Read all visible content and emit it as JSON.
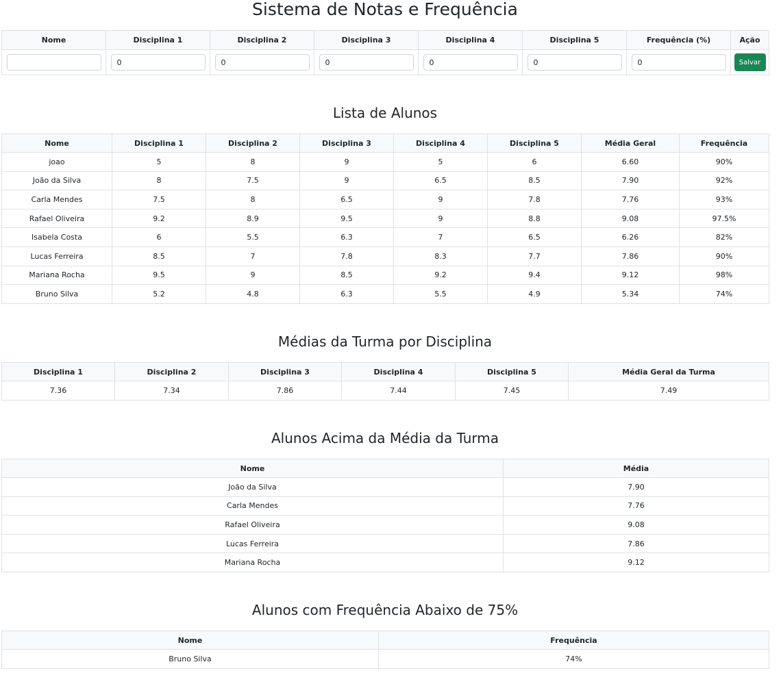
{
  "title": "Sistema de Notas e Frequência",
  "form": {
    "headers": [
      "Nome",
      "Disciplina 1",
      "Disciplina 2",
      "Disciplina 3",
      "Disciplina 4",
      "Disciplina 5",
      "Frequência (%)",
      "Ação"
    ],
    "name_value": "",
    "values": [
      "0",
      "0",
      "0",
      "0",
      "0",
      "0"
    ],
    "save_label": "Salvar"
  },
  "students": {
    "title": "Lista de Alunos",
    "headers": [
      "Nome",
      "Disciplina 1",
      "Disciplina 2",
      "Disciplina 3",
      "Disciplina 4",
      "Disciplina 5",
      "Média Geral",
      "Frequência"
    ],
    "rows": [
      [
        "joao",
        "5",
        "8",
        "9",
        "5",
        "6",
        "6.60",
        "90%"
      ],
      [
        "João da Silva",
        "8",
        "7.5",
        "9",
        "6.5",
        "8.5",
        "7.90",
        "92%"
      ],
      [
        "Carla Mendes",
        "7.5",
        "8",
        "6.5",
        "9",
        "7.8",
        "7.76",
        "93%"
      ],
      [
        "Rafael Oliveira",
        "9.2",
        "8.9",
        "9.5",
        "9",
        "8.8",
        "9.08",
        "97.5%"
      ],
      [
        "Isabela Costa",
        "6",
        "5.5",
        "6.3",
        "7",
        "6.5",
        "6.26",
        "82%"
      ],
      [
        "Lucas Ferreira",
        "8.5",
        "7",
        "7.8",
        "8.3",
        "7.7",
        "7.86",
        "90%"
      ],
      [
        "Mariana Rocha",
        "9.5",
        "9",
        "8.5",
        "9.2",
        "9.4",
        "9.12",
        "98%"
      ],
      [
        "Bruno Silva",
        "5.2",
        "4.8",
        "6.3",
        "5.5",
        "4.9",
        "5.34",
        "74%"
      ]
    ]
  },
  "averages": {
    "title": "Médias da Turma por Disciplina",
    "headers": [
      "Disciplina 1",
      "Disciplina 2",
      "Disciplina 3",
      "Disciplina 4",
      "Disciplina 5",
      "Média Geral da Turma"
    ],
    "rows": [
      [
        "7.36",
        "7.34",
        "7.86",
        "7.44",
        "7.45",
        "7.49"
      ]
    ]
  },
  "above": {
    "title": "Alunos Acima da Média da Turma",
    "headers": [
      "Nome",
      "Média"
    ],
    "rows": [
      [
        "João da Silva",
        "7.90"
      ],
      [
        "Carla Mendes",
        "7.76"
      ],
      [
        "Rafael Oliveira",
        "9.08"
      ],
      [
        "Lucas Ferreira",
        "7.86"
      ],
      [
        "Mariana Rocha",
        "9.12"
      ]
    ]
  },
  "low_freq": {
    "title": "Alunos com Frequência Abaixo de 75%",
    "headers": [
      "Nome",
      "Frequência"
    ],
    "rows": [
      [
        "Bruno Silva",
        "74%"
      ]
    ]
  }
}
